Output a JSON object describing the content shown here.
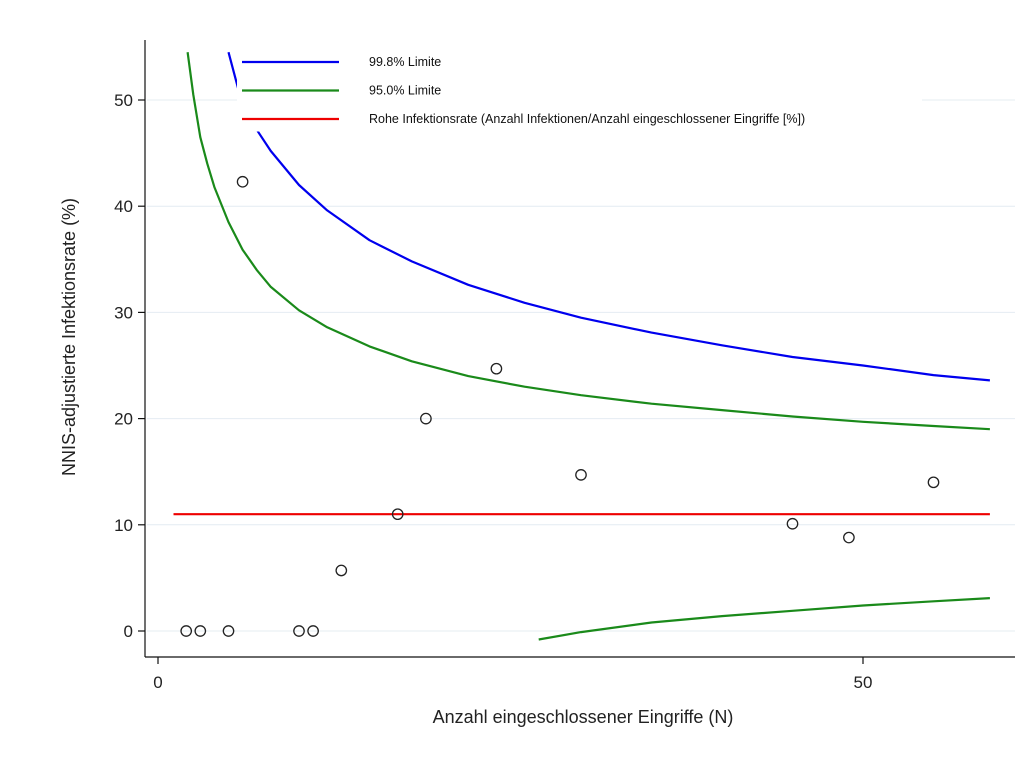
{
  "chart_data": {
    "type": "scatter",
    "title": "",
    "xlabel": "Anzahl eingeschlossener Eingriffe (N)",
    "ylabel": "NNIS-adjustierte Infektionsrate (%)",
    "xlim": [
      0,
      61
    ],
    "ylim": [
      -2,
      55.5
    ],
    "x_ticks": [
      0,
      50
    ],
    "y_ticks": [
      0,
      10,
      20,
      30,
      40,
      50
    ],
    "grid": "horizontal",
    "legend_position": "top",
    "points": [
      {
        "x": 2,
        "y": 0
      },
      {
        "x": 3,
        "y": 0
      },
      {
        "x": 5,
        "y": 0
      },
      {
        "x": 6,
        "y": 42.3
      },
      {
        "x": 10,
        "y": 0
      },
      {
        "x": 11,
        "y": 0
      },
      {
        "x": 13,
        "y": 5.7
      },
      {
        "x": 17,
        "y": 11.0
      },
      {
        "x": 19,
        "y": 20.0
      },
      {
        "x": 24,
        "y": 24.7
      },
      {
        "x": 30,
        "y": 14.7
      },
      {
        "x": 45,
        "y": 10.1
      },
      {
        "x": 49,
        "y": 8.8
      },
      {
        "x": 55,
        "y": 14.0
      }
    ],
    "series": [
      {
        "name": "99.8% Limite",
        "color": "#0000ee",
        "x": [
          5,
          6,
          7,
          8,
          10,
          12,
          15,
          18,
          22,
          26,
          30,
          35,
          40,
          45,
          50,
          55,
          59
        ],
        "y": [
          54.5,
          49.5,
          47.2,
          45.2,
          42.0,
          39.6,
          36.8,
          34.8,
          32.6,
          30.9,
          29.5,
          28.1,
          26.9,
          25.8,
          25.0,
          24.1,
          23.6
        ]
      },
      {
        "name": "95.0% Limite",
        "color": "#1a8a1a",
        "x": [
          2.1,
          2.5,
          3,
          3.5,
          4,
          5,
          6,
          7,
          8,
          10,
          12,
          15,
          18,
          22,
          26,
          30,
          35,
          40,
          45,
          50,
          55,
          59
        ],
        "y": [
          54.5,
          50.5,
          46.5,
          44.0,
          41.8,
          38.5,
          35.9,
          34.0,
          32.4,
          30.2,
          28.6,
          26.8,
          25.4,
          24.0,
          23.0,
          22.2,
          21.4,
          20.8,
          20.2,
          19.7,
          19.3,
          19.0
        ]
      },
      {
        "name": "Rohe Infektionsrate (Anzahl Infektionen/Anzahl eingeschlossener Eingriffe [%])",
        "color": "#ee0000",
        "x": [
          1.1,
          59
        ],
        "y": [
          11.0,
          11.0
        ]
      },
      {
        "name": "",
        "color": "#1a8a1a",
        "x": [
          27,
          30,
          35,
          40,
          45,
          50,
          55,
          59
        ],
        "y": [
          -0.8,
          -0.1,
          0.8,
          1.4,
          1.9,
          2.4,
          2.8,
          3.1
        ]
      }
    ]
  }
}
